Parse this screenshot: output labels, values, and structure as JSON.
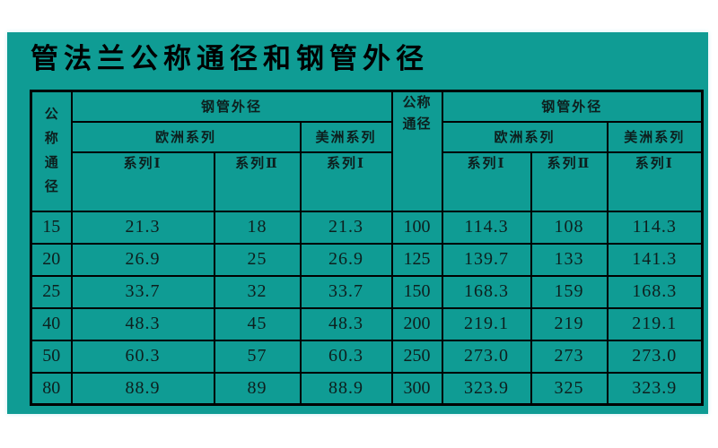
{
  "colors": {
    "page_background": "#ffffff",
    "panel_background": "#0f9c94",
    "line": "#000000",
    "text": "#0d1f1e"
  },
  "title": "管法兰公称通径和钢管外径",
  "table": {
    "headers": {
      "dn_left_vertical": "公\n称\n通\n径",
      "dn_right": "公称\n通径",
      "steel_pipe_od_left": "钢管外径",
      "steel_pipe_od_right": "钢管外径",
      "europe_left": "欧洲系列",
      "america_left": "美洲系列",
      "europe_right": "欧洲系列",
      "america_right": "美洲系列",
      "series1_eu_left": "系列Ⅰ",
      "series2_eu_left": "系列Ⅱ",
      "series1_us_left": "系列Ⅰ",
      "series1_eu_right": "系列Ⅰ",
      "series2_eu_right": "系列Ⅱ",
      "series1_us_right": "系列Ⅰ"
    },
    "rows": [
      [
        "15",
        "21.3",
        "18",
        "21.3",
        "100",
        "114.3",
        "108",
        "114.3"
      ],
      [
        "20",
        "26.9",
        "25",
        "26.9",
        "125",
        "139.7",
        "133",
        "141.3"
      ],
      [
        "25",
        "33.7",
        "32",
        "33.7",
        "150",
        "168.3",
        "159",
        "168.3"
      ],
      [
        "40",
        "48.3",
        "45",
        "48.3",
        "200",
        "219.1",
        "219",
        "219.1"
      ],
      [
        "50",
        "60.3",
        "57",
        "60.3",
        "250",
        "273.0",
        "273",
        "273.0"
      ],
      [
        "80",
        "88.9",
        "89",
        "88.9",
        "300",
        "323.9",
        "325",
        "323.9"
      ]
    ]
  },
  "chart_data": {
    "type": "table",
    "title": "管法兰公称通径和钢管外径",
    "left_table": {
      "columns": [
        "公称通径",
        "钢管外径 欧洲系列 系列Ⅰ",
        "钢管外径 欧洲系列 系列Ⅱ",
        "钢管外径 美洲系列 系列Ⅰ"
      ],
      "dn": [
        15,
        20,
        25,
        40,
        50,
        80
      ],
      "europe_series1": [
        21.3,
        26.9,
        33.7,
        48.3,
        60.3,
        88.9
      ],
      "europe_series2": [
        18,
        25,
        32,
        45,
        57,
        89
      ],
      "america_series1": [
        21.3,
        26.9,
        33.7,
        48.3,
        60.3,
        88.9
      ]
    },
    "right_table": {
      "columns": [
        "公称通径",
        "钢管外径 欧洲系列 系列Ⅰ",
        "钢管外径 欧洲系列 系列Ⅱ",
        "钢管外径 美洲系列 系列Ⅰ"
      ],
      "dn": [
        100,
        125,
        150,
        200,
        250,
        300
      ],
      "europe_series1": [
        114.3,
        139.7,
        168.3,
        219.1,
        273.0,
        323.9
      ],
      "europe_series2": [
        108,
        133,
        159,
        219,
        273,
        325
      ],
      "america_series1": [
        114.3,
        141.3,
        168.3,
        219.1,
        273.0,
        323.9
      ]
    }
  }
}
